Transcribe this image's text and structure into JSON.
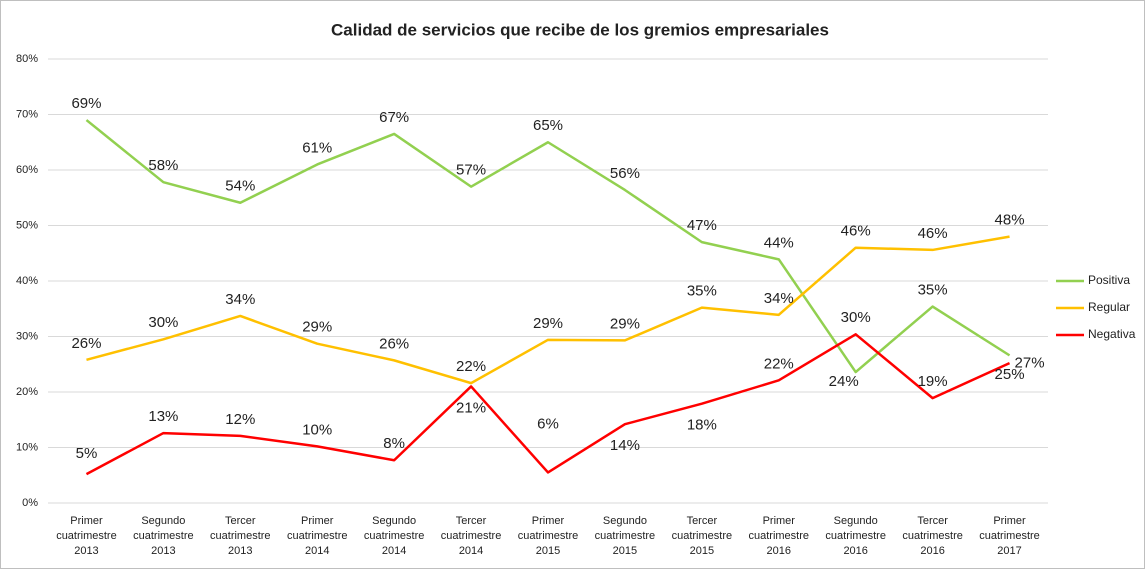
{
  "chart_data": {
    "type": "line",
    "title": "Calidad de servicios que recibe de los gremios empresariales",
    "categories": [
      "Primer cuatrimestre 2013",
      "Segundo cuatrimestre 2013",
      "Tercer cuatrimestre 2013",
      "Primer cuatrimestre 2014",
      "Segundo cuatrimestre 2014",
      "Tercer cuatrimestre 2014",
      "Primer cuatrimestre 2015",
      "Segundo cuatrimestre 2015",
      "Tercer cuatrimestre 2015",
      "Primer cuatrimestre 2016",
      "Segundo cuatrimestre 2016",
      "Tercer cuatrimestre 2016",
      "Primer cuatrimestre 2017"
    ],
    "series": [
      {
        "name": "Positiva",
        "color": "#92d050",
        "values": [
          69,
          57.8,
          54.1,
          61,
          66.5,
          57,
          65,
          56.4,
          47,
          43.9,
          23.6,
          35.4,
          26.6
        ],
        "value_labels": [
          "69%",
          "58%",
          "54%",
          "61%",
          "67%",
          "57%",
          "65%",
          "56%",
          "47%",
          "44%",
          "24%",
          "35%",
          "27%"
        ]
      },
      {
        "name": "Regular",
        "color": "#ffc000",
        "values": [
          25.8,
          29.5,
          33.7,
          28.7,
          25.7,
          21.6,
          29.4,
          29.3,
          35.2,
          33.9,
          46,
          45.6,
          48
        ],
        "value_labels": [
          "26%",
          "30%",
          "34%",
          "29%",
          "26%",
          "22%",
          "29%",
          "29%",
          "35%",
          "34%",
          "46%",
          "46%",
          "48%"
        ]
      },
      {
        "name": "Negativa",
        "color": "#ff0000",
        "values": [
          5.2,
          12.6,
          12.1,
          10.2,
          7.7,
          21,
          5.5,
          14.2,
          17.9,
          22.1,
          30.4,
          18.9,
          25.2
        ],
        "value_labels": [
          "5%",
          "13%",
          "12%",
          "10%",
          "8%",
          "21%",
          "6%",
          "14%",
          "18%",
          "22%",
          "30%",
          "19%",
          "25%"
        ]
      }
    ],
    "ylim": [
      0,
      80
    ],
    "yticks": [
      {
        "value": 0,
        "label": "0%"
      },
      {
        "value": 10,
        "label": "10%"
      },
      {
        "value": 20,
        "label": "20%"
      },
      {
        "value": 30,
        "label": "30%"
      },
      {
        "value": 40,
        "label": "40%"
      },
      {
        "value": 50,
        "label": "50%"
      },
      {
        "value": 60,
        "label": "60%"
      },
      {
        "value": 70,
        "label": "70%"
      },
      {
        "value": 80,
        "label": "80%"
      }
    ],
    "grid": true,
    "legend": "right"
  }
}
